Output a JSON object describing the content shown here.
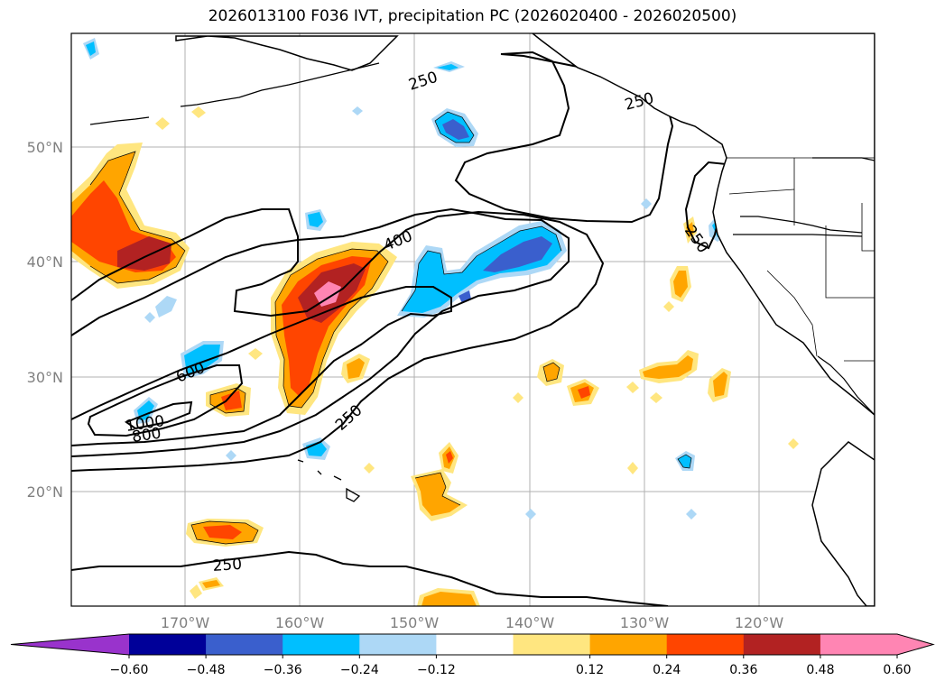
{
  "title": "2026013100 F036 IVT, precipitation PC (2026020400 - 2026020500)",
  "map": {
    "lat_labels": [
      "50°N",
      "40°N",
      "30°N",
      "20°N"
    ],
    "lon_labels": [
      "170°W",
      "160°W",
      "150°W",
      "140°W",
      "130°W",
      "120°W"
    ],
    "contour_labels": [
      "250",
      "250",
      "400",
      "600",
      "800",
      "1000",
      "250",
      "250",
      "250"
    ],
    "colors": {
      "coastline": "#000000",
      "gridline": "#b0b0b0",
      "contour": "#000000"
    }
  },
  "colorbar": {
    "ticks": [
      "−0.60",
      "−0.48",
      "−0.36",
      "−0.24",
      "−0.12",
      "0.12",
      "0.24",
      "0.36",
      "0.48",
      "0.60"
    ],
    "colors": [
      "#9933cc",
      "#000099",
      "#3a5fcd",
      "#00bfff",
      "#add8f6",
      "#ffffff",
      "#ffe680",
      "#ffa500",
      "#ff4500",
      "#b22222",
      "#ff85b3",
      "#ff85b3"
    ]
  }
}
